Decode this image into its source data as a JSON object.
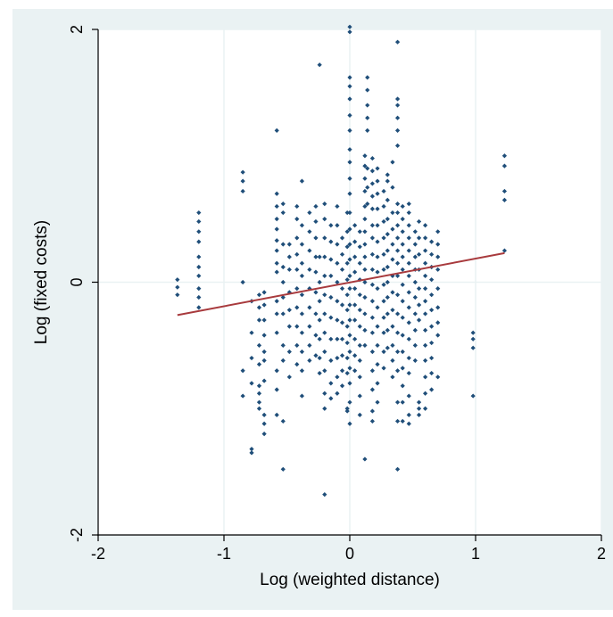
{
  "chart_data": {
    "type": "scatter",
    "title": "",
    "xlabel": "Log (weighted distance)",
    "ylabel": "Log (fixed costs)",
    "xlim": [
      -2,
      2
    ],
    "ylim": [
      -2,
      2
    ],
    "xticks": [
      -2,
      -1,
      0,
      1,
      2
    ],
    "yticks": [
      -2,
      0,
      2
    ],
    "xtick_labels": [
      "-2",
      "-1",
      "0",
      "1",
      "2"
    ],
    "ytick_labels": [
      "-2",
      "0",
      "2"
    ],
    "grid": true,
    "colors": {
      "outer_background": "#eaf2f3",
      "plot_background": "#ffffff",
      "grid": "#eaf2f3",
      "points": "#1f4e79",
      "fit_line": "#a83a3d"
    },
    "fit_line": {
      "x": [
        -1.37,
        1.23
      ],
      "y": [
        -0.26,
        0.23
      ]
    },
    "columns": [
      {
        "x": -1.37,
        "y": [
          0.02,
          -0.04,
          -0.1
        ]
      },
      {
        "x": -1.2,
        "y": [
          0.55,
          0.48,
          0.4,
          0.32,
          0.2,
          0.12,
          0.05,
          -0.05,
          -0.12,
          -0.2
        ]
      },
      {
        "x": -0.85,
        "y": [
          0.87,
          0.8,
          0.72,
          0.0,
          -0.7,
          -0.9
        ]
      },
      {
        "x": -0.78,
        "y": [
          -0.15,
          -0.4,
          -0.6,
          -0.8,
          -1.35,
          -1.32
        ]
      },
      {
        "x": -0.72,
        "y": [
          -0.1,
          -0.2,
          -0.3,
          -0.5,
          -0.65,
          -0.82,
          -0.88,
          -0.95,
          -1.0
        ]
      },
      {
        "x": -0.68,
        "y": [
          -0.08,
          -0.18,
          -0.3,
          -0.42,
          -0.55,
          -0.62,
          -0.78,
          -1.05,
          -1.12,
          -1.2
        ]
      },
      {
        "x": -0.58,
        "y": [
          1.2,
          0.7,
          0.6,
          0.5,
          0.42,
          0.33,
          0.25,
          0.15,
          0.08,
          -0.15,
          -0.25,
          -0.4,
          -0.7,
          -0.85,
          -1.05
        ]
      },
      {
        "x": -0.53,
        "y": [
          0.62,
          0.55,
          0.3,
          0.12,
          0.0,
          -0.12,
          -0.25,
          -0.5,
          -0.62,
          -1.1,
          -1.48
        ]
      },
      {
        "x": -0.48,
        "y": [
          0.3,
          0.2,
          0.1,
          -0.08,
          -0.22,
          -0.35,
          -0.55,
          -0.75
        ]
      },
      {
        "x": -0.42,
        "y": [
          0.6,
          0.5,
          0.35,
          0.22,
          0.1,
          -0.05,
          -0.2,
          -0.35,
          -0.5,
          -0.65
        ]
      },
      {
        "x": -0.38,
        "y": [
          0.8,
          0.45,
          0.3,
          0.15,
          0.05,
          -0.1,
          -0.25,
          -0.4,
          -0.55,
          -0.7,
          -0.9
        ]
      },
      {
        "x": -0.32,
        "y": [
          0.55,
          0.4,
          0.25,
          0.1,
          -0.05,
          -0.2,
          -0.35,
          -0.5,
          -0.62
        ]
      },
      {
        "x": -0.27,
        "y": [
          0.6,
          0.48,
          0.35,
          0.2,
          0.08,
          -0.08,
          -0.25,
          -0.42,
          -0.58
        ]
      },
      {
        "x": -0.24,
        "y": [
          1.72,
          0.2,
          0.0,
          -0.15,
          -0.3,
          -0.45,
          -0.6,
          -0.72
        ]
      },
      {
        "x": -0.2,
        "y": [
          0.62,
          0.5,
          0.35,
          0.2,
          0.05,
          -0.1,
          -0.25,
          -0.4,
          -0.55,
          -0.7,
          -0.88,
          -1.0,
          -1.68
        ]
      },
      {
        "x": -0.15,
        "y": [
          0.45,
          0.32,
          0.18,
          0.05,
          -0.12,
          -0.28,
          -0.45,
          -0.62,
          -0.8,
          -0.92
        ]
      },
      {
        "x": -0.1,
        "y": [
          0.6,
          0.45,
          0.3,
          0.15,
          0.0,
          -0.15,
          -0.3,
          -0.45,
          -0.6,
          -0.75,
          -0.88
        ]
      },
      {
        "x": -0.06,
        "y": [
          0.35,
          0.22,
          0.1,
          -0.05,
          -0.18,
          -0.32,
          -0.45,
          -0.58,
          -0.7,
          -0.82
        ]
      },
      {
        "x": -0.02,
        "y": [
          0.55,
          0.4,
          0.28,
          0.15,
          0.02,
          -0.1,
          -0.22,
          -0.35,
          -0.48,
          -0.6,
          -0.72,
          -1.0,
          -1.02
        ]
      },
      {
        "x": 0.0,
        "y": [
          2.02,
          1.98,
          1.62,
          1.55,
          1.45,
          1.32,
          1.2,
          1.05,
          0.95,
          0.82,
          0.7,
          0.55,
          0.42,
          0.3,
          0.18,
          0.05,
          -0.05,
          -0.18,
          -0.3,
          -0.42,
          -0.55,
          -0.68,
          -0.8,
          -0.95,
          -1.12
        ]
      },
      {
        "x": 0.04,
        "y": [
          0.45,
          0.32,
          0.2,
          0.08,
          -0.05,
          -0.18,
          -0.3,
          -0.45,
          -0.58,
          -0.7
        ]
      },
      {
        "x": 0.08,
        "y": [
          0.4,
          0.28,
          0.15,
          0.02,
          -0.1,
          -0.22,
          -0.35,
          -0.5,
          -0.62,
          -0.75,
          -0.9,
          -1.05
        ]
      },
      {
        "x": 0.12,
        "y": [
          1.0,
          0.92,
          0.82,
          0.72,
          0.6,
          0.5,
          0.4,
          0.3,
          0.2,
          0.1,
          0.0,
          -0.12,
          -0.25,
          -0.38,
          -0.5,
          -1.4
        ]
      },
      {
        "x": 0.14,
        "y": [
          1.62,
          1.52,
          1.4,
          1.3,
          1.2,
          0.9,
          0.75,
          0.62
        ]
      },
      {
        "x": 0.18,
        "y": [
          0.98,
          0.88,
          0.78,
          0.68,
          0.58,
          0.45,
          0.35,
          0.22,
          0.1,
          -0.02,
          -0.15,
          -0.28,
          -0.4,
          -0.55,
          -0.7,
          -0.85,
          -1.02,
          -1.1
        ]
      },
      {
        "x": 0.22,
        "y": [
          0.9,
          0.8,
          0.7,
          0.58,
          0.45,
          0.32,
          0.2,
          0.08,
          -0.05,
          -0.2,
          -0.35,
          -0.5,
          -0.65,
          -0.8,
          -0.95
        ]
      },
      {
        "x": 0.27,
        "y": [
          0.72,
          0.6,
          0.48,
          0.35,
          0.22,
          0.1,
          -0.02,
          -0.15,
          -0.28,
          -0.4,
          -0.55,
          -0.68
        ]
      },
      {
        "x": 0.3,
        "y": [
          0.85,
          0.8,
          0.65,
          0.5,
          0.38,
          0.25,
          0.12,
          0.0,
          -0.12,
          -0.25,
          -0.38,
          -0.52
        ]
      },
      {
        "x": 0.34,
        "y": [
          0.95,
          0.75,
          0.55,
          0.42,
          0.3,
          0.18,
          0.05,
          -0.08,
          -0.22,
          -0.35,
          -0.5,
          -0.62,
          -0.75
        ]
      },
      {
        "x": 0.38,
        "y": [
          1.9,
          1.45,
          1.4,
          1.3,
          1.2,
          1.08,
          0.62,
          0.55,
          0.45,
          0.35,
          0.25,
          0.15,
          0.05,
          -0.1,
          -0.25,
          -0.4,
          -0.55,
          -0.7,
          -0.95,
          -1.1,
          -1.48
        ]
      },
      {
        "x": 0.42,
        "y": [
          0.6,
          0.5,
          0.4,
          0.3,
          0.2,
          0.1,
          -0.02,
          -0.15,
          -0.28,
          -0.42,
          -0.55,
          -0.68,
          -0.82,
          -0.95,
          -1.1
        ]
      },
      {
        "x": 0.47,
        "y": [
          0.62,
          0.55,
          0.45,
          0.35,
          0.25,
          0.15,
          0.05,
          -0.08,
          -0.2,
          -0.32,
          -0.45,
          -0.6,
          -0.72,
          -0.9,
          -1.05,
          -1.12
        ]
      },
      {
        "x": 0.52,
        "y": [
          0.4,
          0.3,
          0.2,
          0.1,
          0.0,
          -0.12,
          -0.25,
          -0.38,
          -0.5,
          -0.62
        ]
      },
      {
        "x": 0.55,
        "y": [
          0.48,
          0.35,
          0.22,
          0.1,
          -0.05,
          -0.18,
          -0.3,
          -0.95,
          -1.0,
          -1.05
        ]
      },
      {
        "x": 0.6,
        "y": [
          0.45,
          0.35,
          0.25,
          0.15,
          0.05,
          -0.05,
          -0.15,
          -0.25,
          -0.38,
          -0.5,
          -0.62,
          -0.75,
          -0.88,
          -1.0
        ]
      },
      {
        "x": 0.65,
        "y": [
          0.32,
          0.22,
          0.12,
          0.02,
          -0.1,
          -0.22,
          -0.35,
          -0.48,
          -0.6,
          -0.72,
          -0.85
        ]
      },
      {
        "x": 0.7,
        "y": [
          0.4,
          0.3,
          0.2,
          0.1,
          -0.05,
          -0.2,
          -0.32,
          -0.42,
          -0.75
        ]
      },
      {
        "x": 0.98,
        "y": [
          -0.4,
          -0.45,
          -0.52,
          -0.9
        ]
      },
      {
        "x": 1.23,
        "y": [
          1.0,
          0.92,
          0.72,
          0.65,
          0.25
        ]
      }
    ]
  }
}
